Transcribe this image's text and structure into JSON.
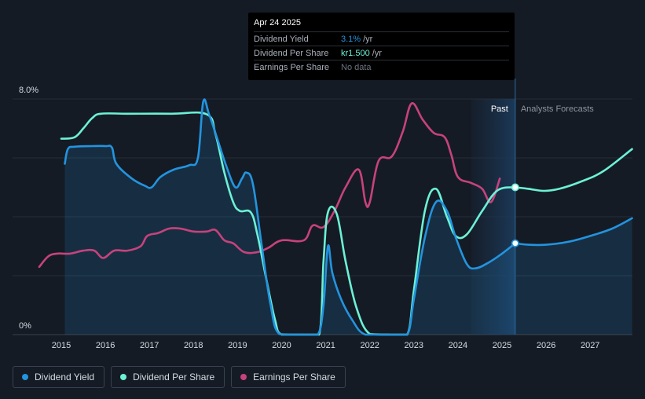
{
  "tooltip": {
    "date": "Apr 24 2025",
    "rows": [
      {
        "label": "Dividend Yield",
        "value": "3.1%",
        "unit": "/yr",
        "color": "#2394df"
      },
      {
        "label": "Dividend Per Share",
        "value": "kr1.500",
        "unit": "/yr",
        "color": "#6cf1d6"
      },
      {
        "label": "Earnings Per Share",
        "value": "No data",
        "unit": "",
        "color": "#6c737f"
      }
    ]
  },
  "legend": [
    {
      "label": "Dividend Yield",
      "color": "#2394df"
    },
    {
      "label": "Dividend Per Share",
      "color": "#6cf1d6"
    },
    {
      "label": "Earnings Per Share",
      "color": "#c7427d"
    }
  ],
  "chart_data": {
    "type": "line",
    "x_ticks": [
      "2015",
      "2016",
      "2017",
      "2018",
      "2019",
      "2020",
      "2021",
      "2022",
      "2023",
      "2024",
      "2025",
      "2026",
      "2027"
    ],
    "y_tick_labels": [
      "8.0%",
      "0%"
    ],
    "ylim": [
      0,
      8
    ],
    "xlim": [
      2014.5,
      2027.95
    ],
    "past_label": "Past",
    "forecast_label": "Analysts Forecasts",
    "forecast_start": 2025.3,
    "past_shade_start": 2024.3,
    "series": [
      {
        "name": "Dividend Yield",
        "color": "#2394df",
        "fill": true,
        "points": [
          [
            2015.08,
            5.8
          ],
          [
            2015.15,
            6.3
          ],
          [
            2015.3,
            6.38
          ],
          [
            2015.7,
            6.4
          ],
          [
            2016.0,
            6.4
          ],
          [
            2016.15,
            6.35
          ],
          [
            2016.25,
            5.8
          ],
          [
            2016.6,
            5.3
          ],
          [
            2016.9,
            5.05
          ],
          [
            2017.05,
            5.0
          ],
          [
            2017.25,
            5.35
          ],
          [
            2017.55,
            5.6
          ],
          [
            2017.9,
            5.75
          ],
          [
            2018.1,
            6.0
          ],
          [
            2018.22,
            7.9
          ],
          [
            2018.35,
            7.5
          ],
          [
            2018.55,
            6.6
          ],
          [
            2018.75,
            5.7
          ],
          [
            2018.95,
            5.0
          ],
          [
            2019.1,
            5.3
          ],
          [
            2019.2,
            5.5
          ],
          [
            2019.35,
            5.1
          ],
          [
            2019.55,
            3.0
          ],
          [
            2019.75,
            1.0
          ],
          [
            2019.95,
            0.02
          ],
          [
            2020.5,
            0.0
          ],
          [
            2020.82,
            0.0
          ],
          [
            2020.95,
            1.0
          ],
          [
            2021.05,
            3.0
          ],
          [
            2021.15,
            2.1
          ],
          [
            2021.35,
            1.2
          ],
          [
            2021.6,
            0.5
          ],
          [
            2021.9,
            0.0
          ],
          [
            2022.5,
            0.0
          ],
          [
            2022.85,
            0.0
          ],
          [
            2023.0,
            1.2
          ],
          [
            2023.25,
            3.3
          ],
          [
            2023.5,
            4.5
          ],
          [
            2023.75,
            4.2
          ],
          [
            2023.95,
            3.3
          ],
          [
            2024.2,
            2.4
          ],
          [
            2024.4,
            2.25
          ],
          [
            2024.7,
            2.45
          ],
          [
            2025.0,
            2.75
          ],
          [
            2025.3,
            3.1
          ]
        ]
      },
      {
        "name": "Dividend Yield Forecast",
        "color": "#2394df",
        "fill": true,
        "points": [
          [
            2025.3,
            3.1
          ],
          [
            2025.6,
            3.05
          ],
          [
            2026.0,
            3.05
          ],
          [
            2026.5,
            3.15
          ],
          [
            2027.0,
            3.35
          ],
          [
            2027.5,
            3.6
          ],
          [
            2027.95,
            3.95
          ]
        ]
      },
      {
        "name": "Dividend Per Share",
        "color": "#6cf1d6",
        "fill": false,
        "points": [
          [
            2015.0,
            6.65
          ],
          [
            2015.3,
            6.7
          ],
          [
            2015.5,
            7.0
          ],
          [
            2015.7,
            7.35
          ],
          [
            2015.9,
            7.5
          ],
          [
            2016.5,
            7.5
          ],
          [
            2017.5,
            7.5
          ],
          [
            2018.3,
            7.48
          ],
          [
            2018.5,
            6.8
          ],
          [
            2018.7,
            5.5
          ],
          [
            2018.9,
            4.5
          ],
          [
            2019.05,
            4.2
          ],
          [
            2019.3,
            4.15
          ],
          [
            2019.45,
            3.4
          ],
          [
            2019.65,
            1.9
          ],
          [
            2019.85,
            0.5
          ],
          [
            2020.0,
            0.0
          ],
          [
            2020.5,
            0.0
          ],
          [
            2020.85,
            0.0
          ],
          [
            2020.95,
            2.5
          ],
          [
            2021.05,
            4.15
          ],
          [
            2021.25,
            4.1
          ],
          [
            2021.45,
            2.5
          ],
          [
            2021.7,
            0.9
          ],
          [
            2022.0,
            0.02
          ],
          [
            2022.5,
            0.0
          ],
          [
            2022.85,
            0.0
          ],
          [
            2023.0,
            1.5
          ],
          [
            2023.25,
            4.2
          ],
          [
            2023.5,
            4.95
          ],
          [
            2023.75,
            4.0
          ],
          [
            2023.95,
            3.35
          ],
          [
            2024.2,
            3.4
          ],
          [
            2024.55,
            4.2
          ],
          [
            2024.9,
            4.9
          ],
          [
            2025.3,
            5.0
          ]
        ]
      },
      {
        "name": "Dividend Per Share Forecast",
        "color": "#6cf1d6",
        "fill": false,
        "points": [
          [
            2025.3,
            5.0
          ],
          [
            2025.6,
            4.95
          ],
          [
            2025.95,
            4.88
          ],
          [
            2026.3,
            4.95
          ],
          [
            2026.8,
            5.2
          ],
          [
            2027.3,
            5.55
          ],
          [
            2027.95,
            6.3
          ]
        ]
      },
      {
        "name": "Earnings Per Share",
        "color": "#c7427d",
        "fill": false,
        "points": [
          [
            2014.5,
            2.3
          ],
          [
            2014.7,
            2.65
          ],
          [
            2014.9,
            2.75
          ],
          [
            2015.2,
            2.75
          ],
          [
            2015.5,
            2.85
          ],
          [
            2015.75,
            2.85
          ],
          [
            2015.95,
            2.6
          ],
          [
            2016.2,
            2.85
          ],
          [
            2016.5,
            2.85
          ],
          [
            2016.8,
            3.0
          ],
          [
            2016.95,
            3.35
          ],
          [
            2017.2,
            3.45
          ],
          [
            2017.45,
            3.6
          ],
          [
            2017.7,
            3.6
          ],
          [
            2018.0,
            3.5
          ],
          [
            2018.3,
            3.5
          ],
          [
            2018.5,
            3.55
          ],
          [
            2018.7,
            3.2
          ],
          [
            2018.9,
            3.1
          ],
          [
            2019.15,
            2.8
          ],
          [
            2019.45,
            2.8
          ],
          [
            2019.7,
            2.95
          ],
          [
            2020.0,
            3.2
          ],
          [
            2020.5,
            3.2
          ],
          [
            2020.7,
            3.7
          ],
          [
            2020.95,
            3.65
          ],
          [
            2021.2,
            4.2
          ],
          [
            2021.45,
            5.0
          ],
          [
            2021.75,
            5.6
          ],
          [
            2021.9,
            4.5
          ],
          [
            2022.0,
            4.5
          ],
          [
            2022.2,
            5.9
          ],
          [
            2022.5,
            6.05
          ],
          [
            2022.75,
            6.9
          ],
          [
            2022.95,
            7.85
          ],
          [
            2023.2,
            7.3
          ],
          [
            2023.45,
            6.85
          ],
          [
            2023.7,
            6.7
          ],
          [
            2023.85,
            6.1
          ],
          [
            2024.0,
            5.35
          ],
          [
            2024.3,
            5.15
          ],
          [
            2024.55,
            4.95
          ],
          [
            2024.75,
            4.5
          ],
          [
            2024.95,
            5.3
          ]
        ]
      }
    ],
    "markers": [
      {
        "x": 2025.3,
        "y": 3.1,
        "color": "#2394df"
      },
      {
        "x": 2025.3,
        "y": 5.0,
        "color": "#6cf1d6"
      }
    ]
  }
}
